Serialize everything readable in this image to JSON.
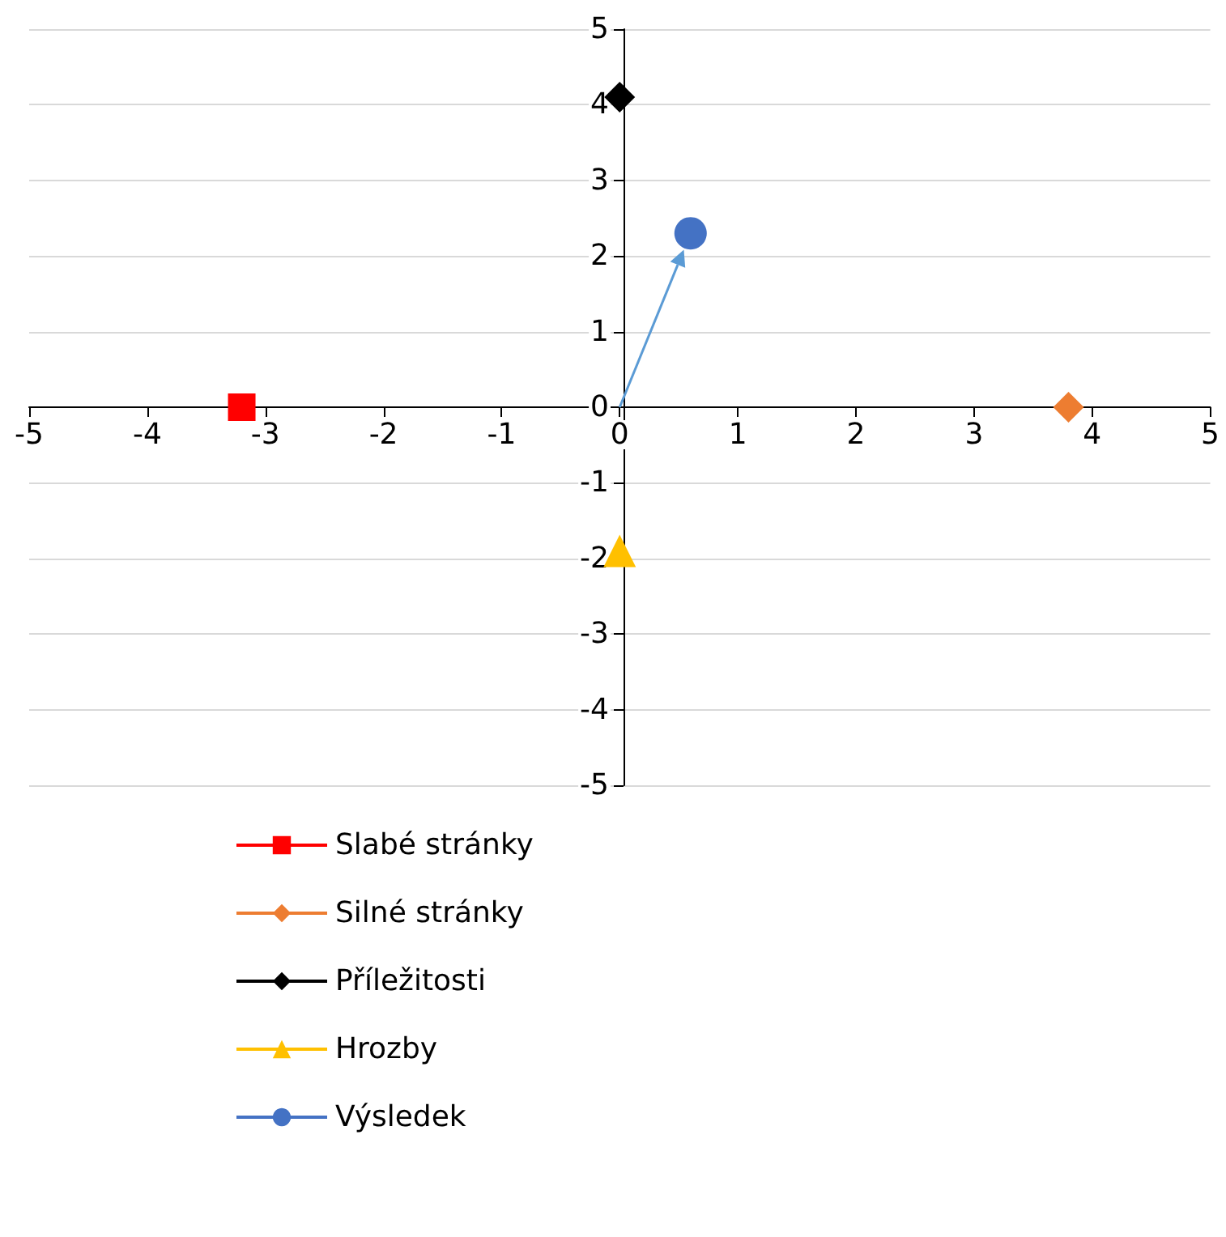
{
  "chart_data": {
    "type": "scatter",
    "xlim": [
      -5,
      5
    ],
    "xticks": [
      -5,
      -4,
      -3,
      -2,
      -1,
      0,
      1,
      2,
      3,
      4,
      5
    ],
    "ylim": [
      -5,
      5
    ],
    "yticks": [
      -5,
      -4,
      -3,
      -2,
      -1,
      0,
      1,
      2,
      3,
      4,
      5
    ],
    "grid": "y",
    "legend": "bottom left",
    "series": [
      {
        "name": "Slabé stránky",
        "color": "#ff0000",
        "marker": "square",
        "x": [
          -3.2
        ],
        "values": [
          0
        ]
      },
      {
        "name": "Silné stránky",
        "color": "#ed7d31",
        "marker": "diamond",
        "x": [
          3.8
        ],
        "values": [
          0
        ]
      },
      {
        "name": "Příležitosti",
        "color": "#000000",
        "marker": "diamond",
        "x": [
          0
        ],
        "values": [
          4.1
        ]
      },
      {
        "name": "Hrozby",
        "color": "#ffc000",
        "marker": "triangle",
        "x": [
          0
        ],
        "values": [
          -1.9
        ]
      },
      {
        "name": "Výsledek",
        "color": "#4472c4",
        "marker": "circle",
        "x": [
          0.6
        ],
        "values": [
          2.3
        ]
      }
    ]
  }
}
